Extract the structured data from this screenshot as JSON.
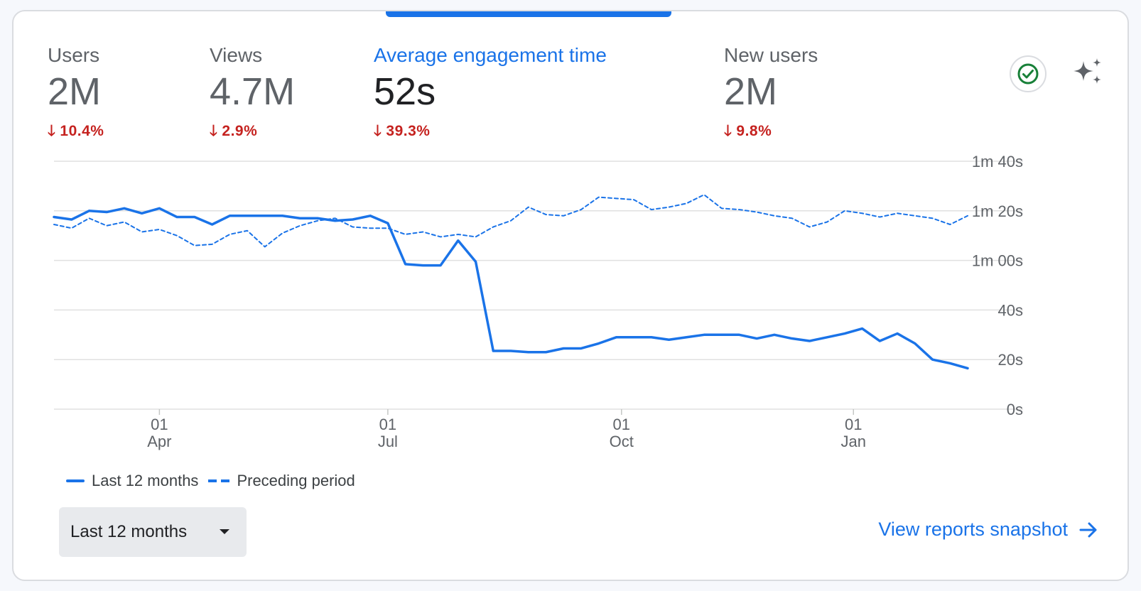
{
  "metrics": [
    {
      "label": "Users",
      "value": "2M",
      "delta": "10.4%"
    },
    {
      "label": "Views",
      "value": "4.7M",
      "delta": "2.9%"
    },
    {
      "label": "Average engagement time",
      "value": "52s",
      "delta": "39.3%"
    },
    {
      "label": "New users",
      "value": "2M",
      "delta": "9.8%"
    }
  ],
  "icons": {
    "status": "check-circle-icon",
    "insights": "sparkle-icon",
    "dropdown": "caret-down-icon",
    "link": "arrow-right-icon",
    "delta": "arrow-down-icon"
  },
  "colors": {
    "accent": "#1a73e8",
    "negative": "#c5221f",
    "grid": "#e0e0e0",
    "check": "#188038"
  },
  "chart_data": {
    "type": "line",
    "title": "",
    "xlabel": "",
    "ylabel": "",
    "ylim": [
      0,
      100
    ],
    "y_ticks": [
      {
        "value": 0,
        "label": "0s"
      },
      {
        "value": 20,
        "label": "20s"
      },
      {
        "value": 40,
        "label": "40s"
      },
      {
        "value": 60,
        "label": "1m 00s"
      },
      {
        "value": 80,
        "label": "1m 20s"
      },
      {
        "value": 100,
        "label": "1m 40s"
      }
    ],
    "x_range": [
      0,
      52
    ],
    "x_ticks": [
      {
        "x": 6,
        "day": "01",
        "month": "Apr"
      },
      {
        "x": 19,
        "day": "01",
        "month": "Jul"
      },
      {
        "x": 32.3,
        "day": "01",
        "month": "Oct"
      },
      {
        "x": 45.5,
        "day": "01",
        "month": "Jan"
      }
    ],
    "series": [
      {
        "name": "Last 12 months",
        "style": "solid",
        "values": [
          77.5,
          76.5,
          80,
          79.5,
          81,
          79,
          81,
          77.5,
          77.5,
          74.5,
          78,
          78,
          78,
          78,
          77,
          77,
          76,
          76.5,
          78,
          75,
          58.5,
          58,
          58,
          68,
          59.5,
          23.5,
          23.5,
          23,
          23,
          24.5,
          24.5,
          26.5,
          29,
          29,
          29,
          28,
          29,
          30,
          30,
          30,
          28.5,
          30,
          28.5,
          27.5,
          29,
          30.5,
          32.5,
          27.5,
          30.5,
          26.5,
          20,
          18.5,
          16.5
        ]
      },
      {
        "name": "Preceding period",
        "style": "dashed",
        "values": [
          74.5,
          73,
          77,
          74,
          75.5,
          71.5,
          72.5,
          70,
          66,
          66.5,
          70.5,
          72,
          65.5,
          71,
          74,
          76,
          77,
          73.5,
          73,
          73,
          70.5,
          71.5,
          69.5,
          70.5,
          69.5,
          73.5,
          76,
          81.5,
          78.5,
          78,
          80.5,
          85.5,
          85,
          84.5,
          80.5,
          81.5,
          83,
          86.5,
          81,
          80.5,
          79.5,
          78,
          77,
          73.5,
          75.5,
          80,
          79,
          77.5,
          79,
          78,
          77,
          74.5,
          78
        ]
      }
    ],
    "legend": [
      "Last 12 months",
      "Preceding period"
    ]
  },
  "controls": {
    "range_label": "Last 12 months",
    "view_link": "View reports snapshot"
  }
}
